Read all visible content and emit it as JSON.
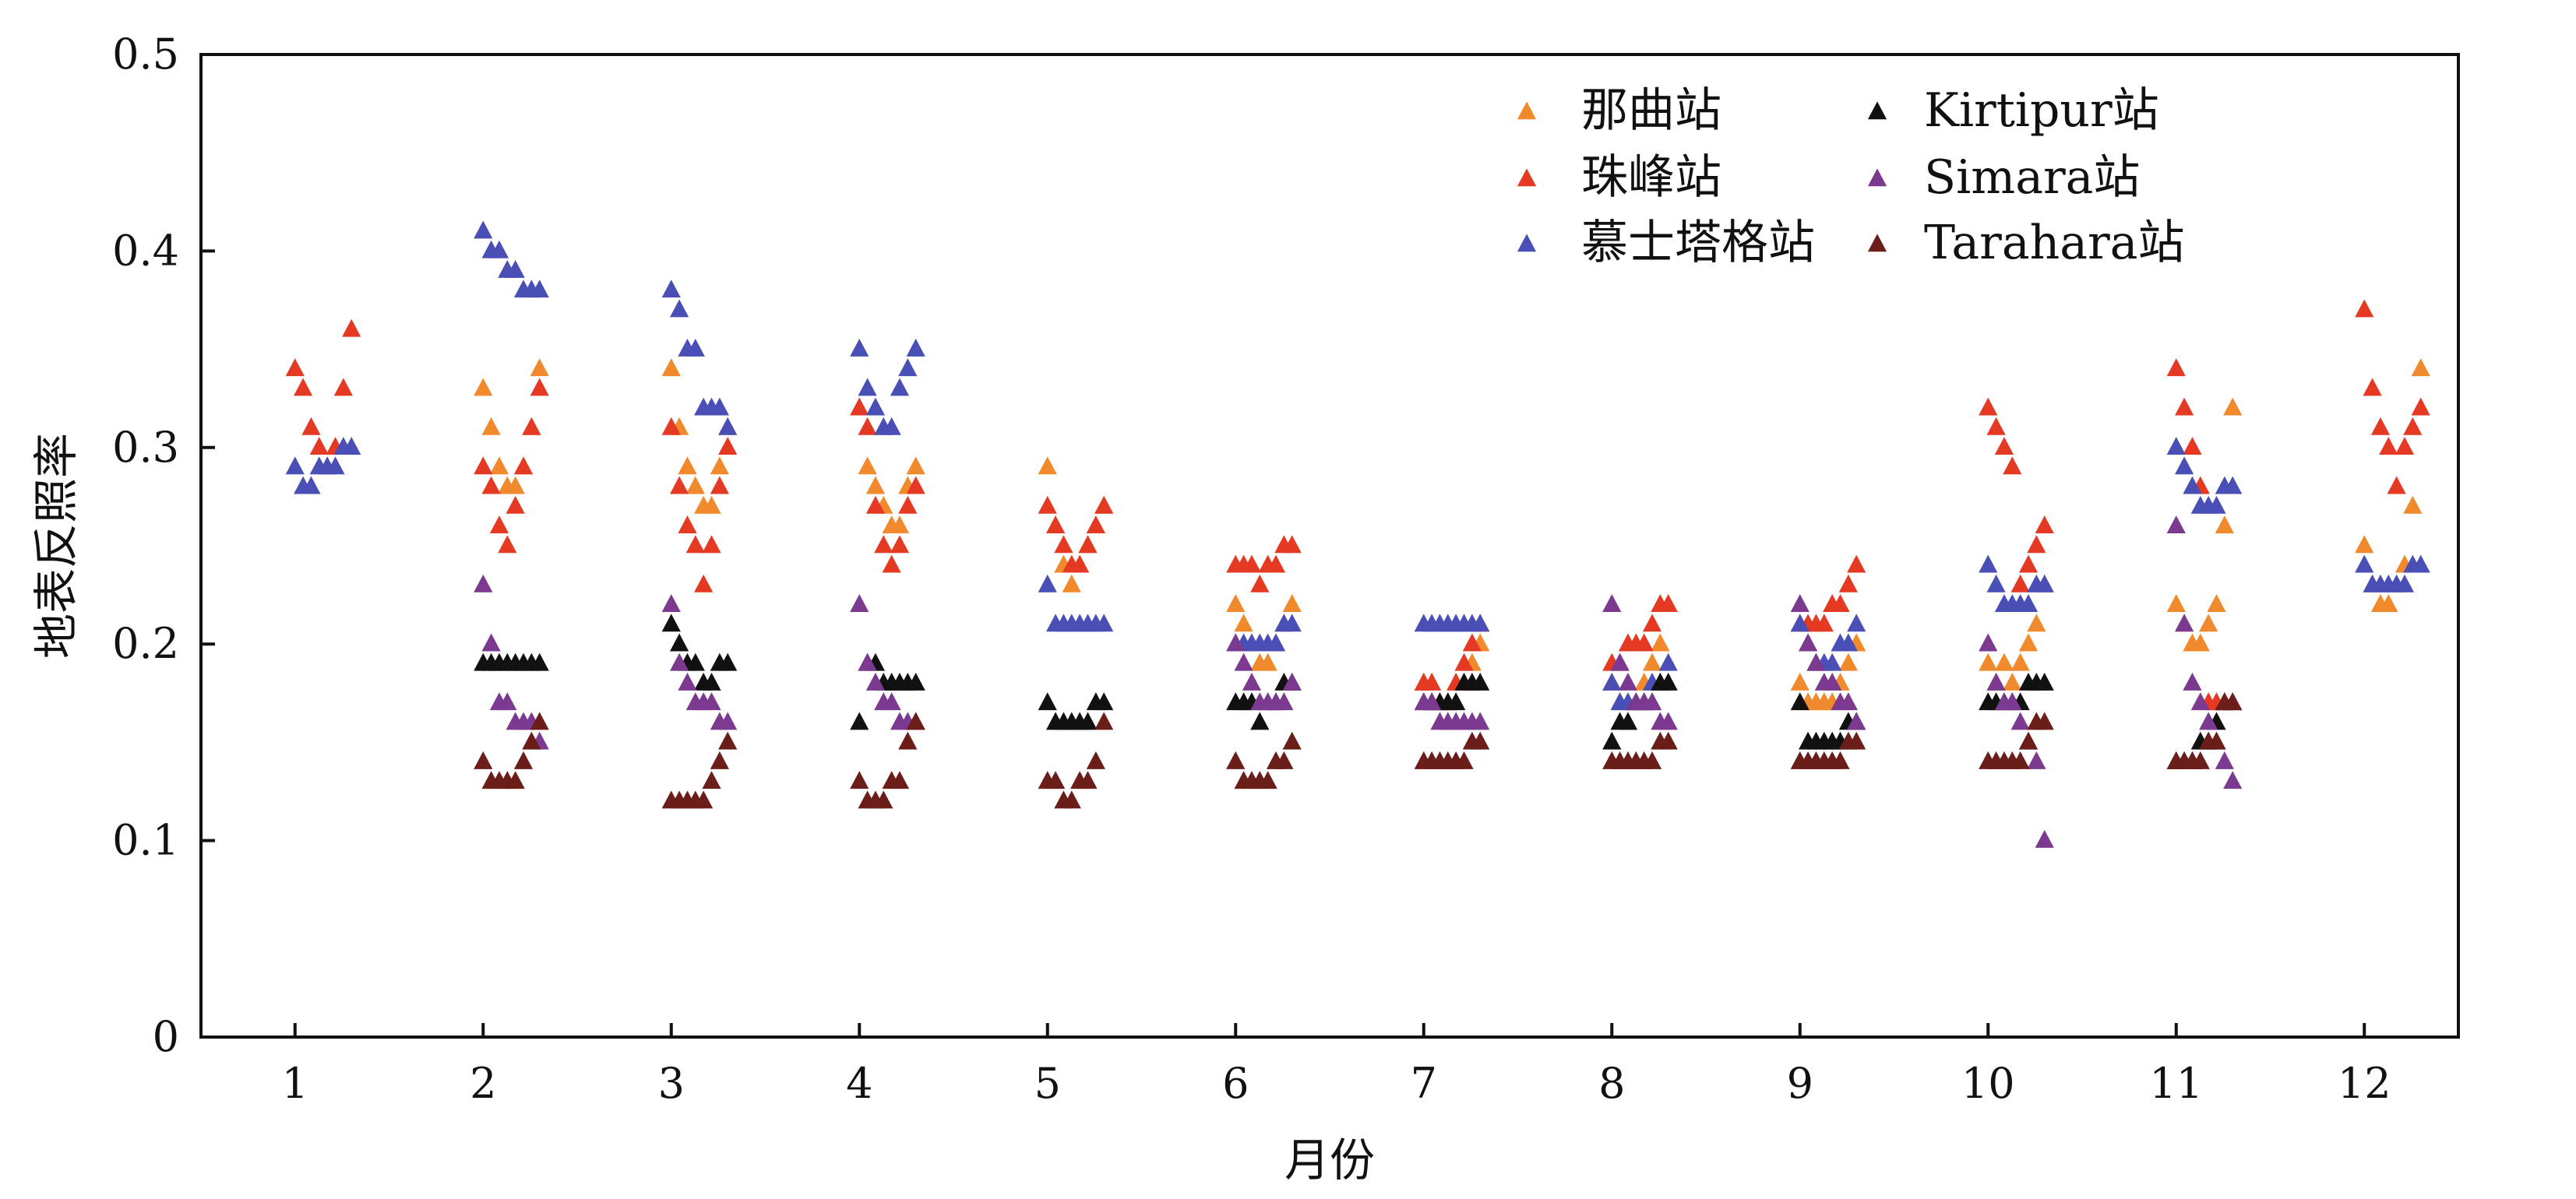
{
  "chart_data": {
    "type": "scatter",
    "xlabel": "月份",
    "ylabel": "地表反照率",
    "categories": [
      "1",
      "2",
      "3",
      "4",
      "5",
      "6",
      "7",
      "8",
      "9",
      "10",
      "11",
      "12"
    ],
    "xlim": [
      0.5,
      12.5
    ],
    "ylim": [
      0,
      0.5
    ],
    "yticks": [
      "0",
      "0.1",
      "0.2",
      "0.3",
      "0.4",
      "0.5"
    ],
    "grid": false,
    "marker": "triangle-up",
    "points_per_month": 8,
    "point_spread_months": 0.3,
    "legend_position": "top-right",
    "series": [
      {
        "name": "那曲站",
        "color": "#f08a2c",
        "values": [
          [
            null,
            null,
            null,
            null,
            null,
            null,
            null,
            null
          ],
          [
            0.33,
            0.31,
            0.29,
            0.28,
            0.28,
            0.29,
            0.31,
            0.34
          ],
          [
            0.34,
            0.31,
            0.29,
            0.28,
            0.27,
            0.27,
            0.29,
            0.31
          ],
          [
            0.32,
            0.29,
            0.28,
            0.27,
            0.26,
            0.26,
            0.28,
            0.29
          ],
          [
            0.29,
            0.26,
            0.24,
            0.23,
            0.24,
            0.25,
            0.26,
            0.27
          ],
          [
            0.22,
            0.21,
            0.2,
            0.19,
            0.19,
            0.2,
            0.21,
            0.22
          ],
          [
            0.18,
            0.17,
            0.17,
            0.16,
            0.17,
            0.18,
            0.19,
            0.2
          ],
          [
            0.18,
            0.17,
            0.16,
            0.17,
            0.18,
            0.19,
            0.2,
            0.22
          ],
          [
            0.18,
            0.17,
            0.17,
            0.17,
            0.17,
            0.18,
            0.19,
            0.2
          ],
          [
            0.19,
            0.18,
            0.19,
            0.18,
            0.19,
            0.2,
            0.21,
            0.23
          ],
          [
            0.22,
            0.21,
            0.2,
            0.2,
            0.21,
            0.22,
            0.26,
            0.32
          ],
          [
            0.25,
            0.23,
            0.22,
            0.22,
            0.23,
            0.24,
            0.27,
            0.34
          ]
        ]
      },
      {
        "name": "珠峰站",
        "color": "#e43a24",
        "values": [
          [
            0.34,
            0.33,
            0.31,
            0.3,
            0.29,
            0.3,
            0.33,
            0.36
          ],
          [
            0.29,
            0.28,
            0.26,
            0.25,
            0.27,
            0.29,
            0.31,
            0.33
          ],
          [
            0.31,
            0.28,
            0.26,
            0.25,
            0.23,
            0.25,
            0.28,
            0.3
          ],
          [
            0.32,
            0.31,
            0.27,
            0.25,
            0.24,
            0.25,
            0.27,
            0.28
          ],
          [
            0.27,
            0.26,
            0.25,
            0.24,
            0.24,
            0.25,
            0.26,
            0.27
          ],
          [
            0.24,
            0.24,
            0.24,
            0.23,
            0.24,
            0.24,
            0.25,
            0.25
          ],
          [
            0.18,
            0.18,
            0.17,
            0.17,
            0.18,
            0.19,
            0.2,
            0.21
          ],
          [
            0.19,
            0.19,
            0.2,
            0.2,
            0.2,
            0.21,
            0.22,
            0.22
          ],
          [
            0.21,
            0.21,
            0.21,
            0.21,
            0.22,
            0.22,
            0.23,
            0.24
          ],
          [
            0.32,
            0.31,
            0.3,
            0.29,
            0.23,
            0.24,
            0.25,
            0.26
          ],
          [
            0.34,
            0.32,
            0.3,
            0.28,
            0.17,
            0.17,
            0.17,
            0.17
          ],
          [
            0.37,
            0.33,
            0.31,
            0.3,
            0.28,
            0.3,
            0.31,
            0.32
          ]
        ]
      },
      {
        "name": "慕士塔格站",
        "color": "#4a4fb5",
        "values": [
          [
            0.29,
            0.28,
            0.28,
            0.29,
            0.29,
            0.29,
            0.3,
            0.3
          ],
          [
            0.41,
            0.4,
            0.4,
            0.39,
            0.39,
            0.38,
            0.38,
            0.38
          ],
          [
            0.38,
            0.37,
            0.35,
            0.35,
            0.32,
            0.32,
            0.32,
            0.31
          ],
          [
            0.35,
            0.33,
            0.32,
            0.31,
            0.31,
            0.33,
            0.34,
            0.35
          ],
          [
            0.23,
            0.21,
            0.21,
            0.21,
            0.21,
            0.21,
            0.21,
            0.21
          ],
          [
            0.2,
            0.2,
            0.2,
            0.2,
            0.2,
            0.2,
            0.21,
            0.21
          ],
          [
            0.21,
            0.21,
            0.21,
            0.21,
            0.21,
            0.21,
            0.21,
            0.21
          ],
          [
            0.18,
            0.17,
            0.17,
            0.17,
            0.17,
            0.18,
            0.18,
            0.19
          ],
          [
            0.21,
            0.2,
            0.19,
            0.19,
            0.19,
            0.2,
            0.2,
            0.21
          ],
          [
            0.24,
            0.23,
            0.22,
            0.22,
            0.22,
            0.22,
            0.23,
            0.23
          ],
          [
            0.3,
            0.29,
            0.28,
            0.27,
            0.27,
            0.27,
            0.28,
            0.28
          ],
          [
            0.24,
            0.23,
            0.23,
            0.23,
            0.23,
            0.23,
            0.24,
            0.24
          ]
        ]
      },
      {
        "name": "Kirtipur站",
        "color": "#111111",
        "values": [
          [
            null,
            null,
            null,
            null,
            null,
            null,
            null,
            null
          ],
          [
            0.19,
            0.19,
            0.19,
            0.19,
            0.19,
            0.19,
            0.19,
            0.19
          ],
          [
            0.21,
            0.2,
            0.19,
            0.19,
            0.18,
            0.18,
            0.19,
            0.19
          ],
          [
            0.16,
            0.19,
            0.19,
            0.18,
            0.18,
            0.18,
            0.18,
            0.18
          ],
          [
            0.17,
            0.16,
            0.16,
            0.16,
            0.16,
            0.16,
            0.17,
            0.17
          ],
          [
            0.17,
            0.17,
            0.17,
            0.16,
            0.17,
            0.17,
            0.18,
            0.18
          ],
          [
            0.17,
            0.17,
            0.17,
            0.17,
            0.17,
            0.18,
            0.18,
            0.18
          ],
          [
            0.15,
            0.16,
            0.16,
            0.17,
            0.17,
            0.17,
            0.18,
            0.18
          ],
          [
            0.17,
            0.15,
            0.15,
            0.15,
            0.15,
            0.15,
            0.16,
            0.16
          ],
          [
            0.17,
            0.17,
            0.17,
            0.17,
            0.17,
            0.18,
            0.18,
            0.18
          ],
          [
            0.14,
            0.14,
            0.14,
            0.15,
            0.15,
            0.16,
            0.17,
            0.17
          ],
          [
            null,
            null,
            null,
            null,
            null,
            null,
            null,
            null
          ]
        ]
      },
      {
        "name": "Simara站",
        "color": "#7b3a8f",
        "values": [
          [
            null,
            null,
            null,
            null,
            null,
            null,
            null,
            null
          ],
          [
            0.23,
            0.2,
            0.17,
            0.17,
            0.16,
            0.16,
            0.16,
            0.15
          ],
          [
            0.22,
            0.19,
            0.18,
            0.17,
            0.17,
            0.17,
            0.16,
            0.16
          ],
          [
            0.22,
            0.19,
            0.18,
            0.17,
            0.17,
            0.16,
            0.16,
            0.16
          ],
          [
            null,
            null,
            null,
            null,
            null,
            null,
            null,
            null
          ],
          [
            0.2,
            0.19,
            0.18,
            0.17,
            0.17,
            0.17,
            0.17,
            0.18
          ],
          [
            0.17,
            0.17,
            0.16,
            0.16,
            0.16,
            0.16,
            0.16,
            0.16
          ],
          [
            0.22,
            0.19,
            0.18,
            0.17,
            0.17,
            0.17,
            0.16,
            0.16
          ],
          [
            0.22,
            0.2,
            0.19,
            0.18,
            0.18,
            0.17,
            0.17,
            0.16
          ],
          [
            0.2,
            0.18,
            0.17,
            0.17,
            0.16,
            0.15,
            0.14,
            0.1
          ],
          [
            0.26,
            0.21,
            0.18,
            0.17,
            0.16,
            0.15,
            0.14,
            0.13
          ],
          [
            null,
            null,
            null,
            null,
            null,
            null,
            null,
            null
          ]
        ]
      },
      {
        "name": "Tarahara站",
        "color": "#6b1d1a",
        "values": [
          [
            null,
            null,
            null,
            null,
            null,
            null,
            null,
            null
          ],
          [
            0.14,
            0.13,
            0.13,
            0.13,
            0.13,
            0.14,
            0.15,
            0.16
          ],
          [
            0.12,
            0.12,
            0.12,
            0.12,
            0.12,
            0.13,
            0.14,
            0.15
          ],
          [
            0.13,
            0.12,
            0.12,
            0.12,
            0.13,
            0.13,
            0.15,
            0.16
          ],
          [
            0.13,
            0.13,
            0.12,
            0.12,
            0.13,
            0.13,
            0.14,
            0.16
          ],
          [
            0.14,
            0.13,
            0.13,
            0.13,
            0.13,
            0.14,
            0.14,
            0.15
          ],
          [
            0.14,
            0.14,
            0.14,
            0.14,
            0.14,
            0.14,
            0.15,
            0.15
          ],
          [
            0.14,
            0.14,
            0.14,
            0.14,
            0.14,
            0.14,
            0.15,
            0.15
          ],
          [
            0.14,
            0.14,
            0.14,
            0.14,
            0.14,
            0.14,
            0.15,
            0.15
          ],
          [
            0.14,
            0.14,
            0.14,
            0.14,
            0.14,
            0.15,
            0.16,
            0.16
          ],
          [
            0.14,
            0.14,
            0.14,
            0.14,
            0.15,
            0.15,
            0.17,
            0.17
          ],
          [
            null,
            null,
            null,
            null,
            null,
            null,
            null,
            null
          ]
        ]
      }
    ]
  }
}
